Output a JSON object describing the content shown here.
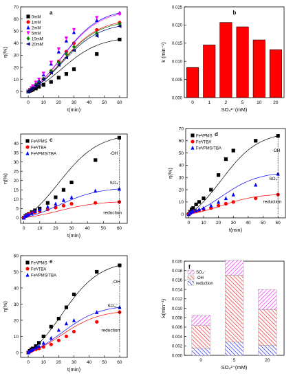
{
  "chart_data": [
    {
      "panel": "a",
      "type": "scatter",
      "xlabel": "t(min)",
      "ylabel": "η(%)",
      "xlim": [
        -5,
        65
      ],
      "ylim": [
        -5,
        70
      ],
      "xticks": [
        0,
        10,
        20,
        30,
        40,
        50,
        60
      ],
      "yticks": [
        0,
        10,
        20,
        30,
        40,
        50,
        60,
        70
      ],
      "legend_position": "top-left",
      "grid": false,
      "x": [
        0,
        1,
        2,
        3,
        5,
        7,
        10,
        15,
        20,
        25,
        30,
        45,
        60
      ],
      "series": [
        {
          "name": "0mM",
          "color": "#000000",
          "marker": "square",
          "values": [
            0,
            0.5,
            1,
            1.5,
            2.5,
            4,
            5.5,
            8,
            11.5,
            14.5,
            18.5,
            31,
            43
          ]
        },
        {
          "name": "1mM",
          "color": "#ff0000",
          "marker": "circle",
          "values": [
            0,
            1,
            2,
            3,
            5,
            7,
            10.5,
            17,
            25,
            33,
            40,
            51,
            57
          ]
        },
        {
          "name": "2mM",
          "color": "#0000ff",
          "marker": "triangle",
          "values": [
            0,
            1.5,
            3,
            4,
            7,
            9.5,
            14,
            23,
            33,
            42,
            49,
            59,
            65
          ]
        },
        {
          "name": "5mM",
          "color": "#ff00ff",
          "marker": "triangle-down",
          "values": [
            0,
            1.5,
            3,
            4.5,
            7.5,
            10,
            15,
            24,
            35,
            44,
            51,
            61,
            64
          ]
        },
        {
          "name": "10mM",
          "color": "#008000",
          "marker": "diamond",
          "values": [
            0,
            1,
            2,
            3,
            5.5,
            7.5,
            10.5,
            17,
            24,
            31,
            37,
            48,
            56
          ]
        },
        {
          "name": "20mM",
          "color": "#000080",
          "marker": "triangle-left",
          "values": [
            0,
            1,
            2,
            3,
            5,
            7,
            10,
            15.5,
            22,
            28,
            34,
            46,
            54
          ]
        }
      ]
    },
    {
      "panel": "b",
      "type": "bar",
      "xlabel": "SO₄²⁻(mM)",
      "ylabel": "k (min⁻¹)",
      "ylim": [
        0,
        0.025
      ],
      "yticks": [
        "0.000",
        "0.005",
        "0.010",
        "0.015",
        "0.020",
        "0.025"
      ],
      "color": "#ff0000",
      "grid": false,
      "categories": [
        "0",
        "1",
        "2",
        "5",
        "10",
        "20"
      ],
      "values": [
        0.0083,
        0.0145,
        0.0207,
        0.0195,
        0.0159,
        0.0132
      ]
    },
    {
      "panel": "c",
      "type": "scatter",
      "xlabel": "t(min)",
      "ylabel": "η(%)",
      "xlim": [
        -2,
        65
      ],
      "ylim": [
        -3,
        45
      ],
      "xticks": [
        0,
        10,
        20,
        30,
        40,
        50,
        60
      ],
      "yticks": [
        0,
        5,
        10,
        15,
        20,
        25,
        30,
        35,
        40
      ],
      "legend_position": "top-left",
      "grid": false,
      "x": [
        0,
        1,
        2,
        3,
        5,
        7,
        10,
        15,
        20,
        25,
        30,
        45,
        60
      ],
      "series": [
        {
          "name": "Feᴵᴵ/PMS",
          "color": "#000000",
          "marker": "square",
          "values": [
            0,
            1,
            1.5,
            2,
            3,
            4,
            5,
            8,
            11,
            15,
            19,
            31,
            43
          ]
        },
        {
          "name": "Feᴵᴵ/TBA",
          "color": "#ff0000",
          "marker": "circle",
          "values": [
            0,
            1,
            1.5,
            2,
            2.5,
            3,
            3.5,
            4.5,
            5.5,
            6.5,
            7.5,
            8,
            8.5
          ]
        },
        {
          "name": "Feᴵᴵ/PMS/TBA",
          "color": "#0000ff",
          "marker": "triangle",
          "values": [
            0,
            1,
            1.5,
            2,
            2.5,
            3.5,
            4.5,
            6,
            7.5,
            9.5,
            11,
            14.5,
            15.5
          ]
        }
      ],
      "annotations": [
        "·OH",
        "SO₄⁻",
        "reduction"
      ]
    },
    {
      "panel": "d",
      "type": "scatter",
      "xlabel": "t(min)",
      "ylabel": "η(%)",
      "xlim": [
        -2,
        65
      ],
      "ylim": [
        -3,
        70
      ],
      "xticks": [
        0,
        10,
        20,
        30,
        40,
        50,
        60
      ],
      "yticks": [
        0,
        10,
        20,
        30,
        40,
        50,
        60,
        70
      ],
      "legend_position": "top-left",
      "grid": false,
      "x": [
        0,
        1,
        2,
        3,
        5,
        7,
        10,
        15,
        20,
        25,
        30,
        45,
        60
      ],
      "series": [
        {
          "name": "Feᴵᴵ/PMS",
          "color": "#000000",
          "marker": "square",
          "values": [
            0,
            2,
            4,
            5,
            8,
            10,
            13,
            20,
            32,
            45,
            52,
            60,
            64
          ]
        },
        {
          "name": "Feᴵᴵ/TBA",
          "color": "#ff0000",
          "marker": "circle",
          "values": [
            0,
            1,
            1.5,
            2,
            2.5,
            3,
            4,
            5,
            7,
            8.5,
            10,
            13,
            16
          ]
        },
        {
          "name": "Feᴵᴵ/PMS/TBA",
          "color": "#0000ff",
          "marker": "triangle",
          "values": [
            0,
            1,
            2,
            2.5,
            3,
            4,
            5,
            7,
            10,
            13,
            16,
            24,
            33
          ]
        }
      ],
      "annotations": [
        "·OH",
        "SO₄⁻",
        "reduction"
      ]
    },
    {
      "panel": "e",
      "type": "scatter",
      "xlabel": "t(min)",
      "ylabel": "η(%)",
      "xlim": [
        -5,
        65
      ],
      "ylim": [
        -3,
        60
      ],
      "xticks": [
        0,
        10,
        20,
        30,
        40,
        50,
        60
      ],
      "yticks": [
        0,
        10,
        20,
        30,
        40,
        50,
        60
      ],
      "legend_position": "top-left",
      "grid": false,
      "x": [
        0,
        1,
        2,
        3,
        5,
        7,
        10,
        15,
        20,
        25,
        30,
        45,
        60
      ],
      "series": [
        {
          "name": "Feᴵᴵ/PMS",
          "color": "#000000",
          "marker": "square",
          "values": [
            0,
            1,
            2,
            2.5,
            4,
            6,
            10,
            16,
            21,
            28,
            36,
            50,
            54
          ]
        },
        {
          "name": "Feᴵᴵ/TBA",
          "color": "#ff0000",
          "marker": "circle",
          "values": [
            0,
            0.5,
            1,
            1.5,
            2,
            2.5,
            3.5,
            5,
            7.5,
            10,
            13,
            19,
            25
          ]
        },
        {
          "name": "Feᴵᴵ/PMS/TBA",
          "color": "#0000ff",
          "marker": "triangle",
          "values": [
            0,
            1,
            1.5,
            2,
            3,
            4,
            6,
            9,
            14,
            18,
            20,
            25,
            28
          ]
        }
      ],
      "annotations": [
        "·OH",
        "SO₄⁻",
        "reduction"
      ]
    },
    {
      "panel": "f",
      "type": "bar",
      "stacked": true,
      "xlabel": "SO₄²⁻(mM)",
      "ylabel": "k(min⁻¹)",
      "ylim": [
        0,
        0.02
      ],
      "yticks": [
        "0.000",
        "0.002",
        "0.004",
        "0.006",
        "0.008",
        "0.010",
        "0.012",
        "0.014",
        "0.016",
        "0.018",
        "0.020"
      ],
      "legend_position": "top-left",
      "grid": false,
      "categories": [
        "0",
        "5",
        "20"
      ],
      "series": [
        {
          "name": "reduction",
          "color": "#0000ff",
          "values": [
            0.0015,
            0.0028,
            0.0021
          ]
        },
        {
          "name": "·OH",
          "color": "#ff0000",
          "values": [
            0.0048,
            0.0142,
            0.0076
          ]
        },
        {
          "name": "SO₄⁻",
          "color": "#ff00ff",
          "values": [
            0.0022,
            0.0032,
            0.0043
          ]
        }
      ]
    }
  ]
}
